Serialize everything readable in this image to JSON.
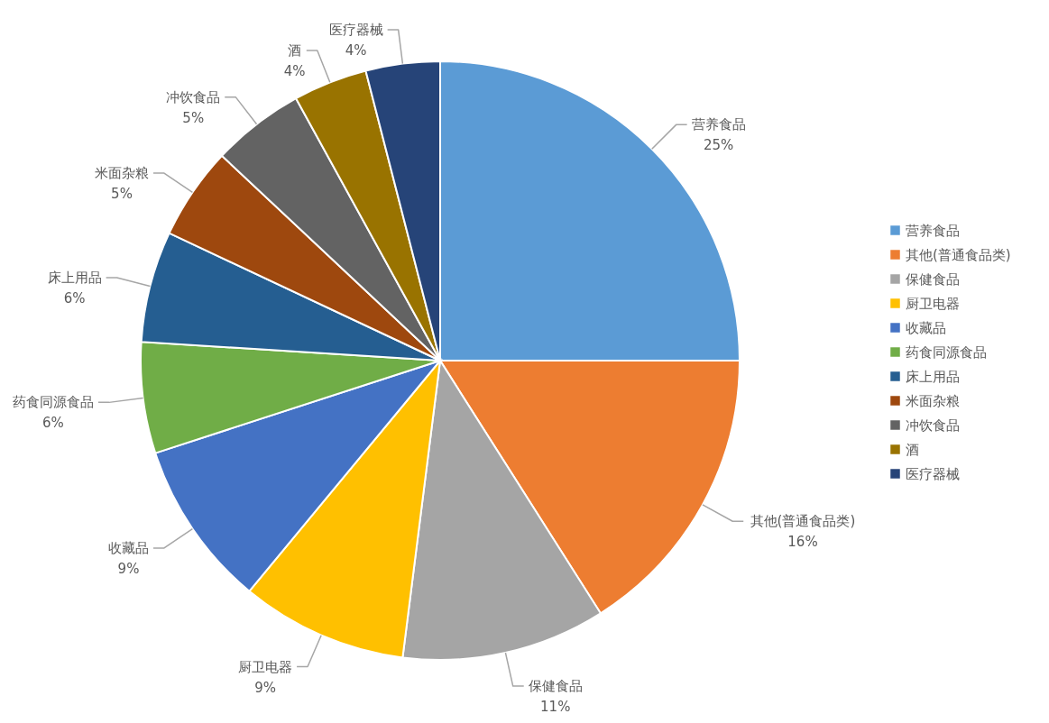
{
  "chart_data": {
    "type": "pie",
    "categories": [
      "营养食品",
      "其他(普通食品类)",
      "保健食品",
      "厨卫电器",
      "收藏品",
      "药食同源食品",
      "床上用品",
      "米面杂粮",
      "冲饮食品",
      "酒",
      "医疗器械"
    ],
    "values": [
      25,
      16,
      11,
      9,
      9,
      6,
      6,
      5,
      5,
      4,
      4
    ],
    "colors": [
      "#5b9bd5",
      "#ed7d31",
      "#a5a5a5",
      "#ffc000",
      "#4472c4",
      "#70ad47",
      "#255e91",
      "#9e480e",
      "#636363",
      "#997300",
      "#264478"
    ],
    "value_labels": [
      "25%",
      "16%",
      "11%",
      "9%",
      "9%",
      "6%",
      "6%",
      "5%",
      "5%",
      "4%",
      "4%"
    ],
    "legend": "right"
  }
}
